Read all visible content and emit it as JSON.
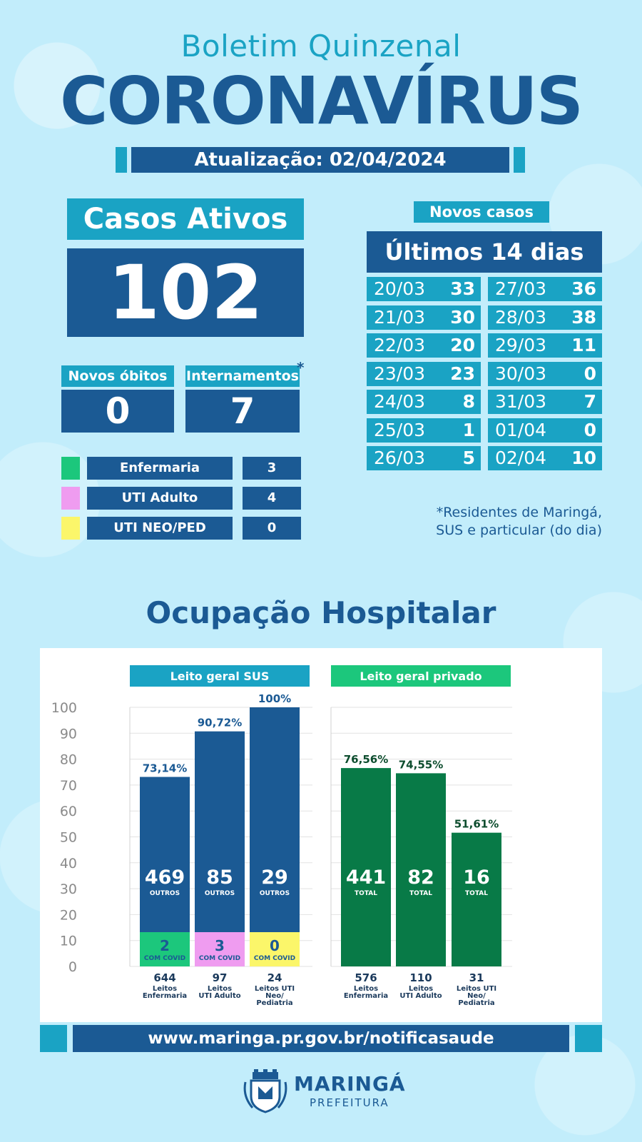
{
  "header": {
    "subtitle": "Boletim Quinzenal",
    "title": "CORONAVÍRUS",
    "update": "Atualização: 02/04/2024"
  },
  "active_cases": {
    "label": "Casos Ativos",
    "value": "102"
  },
  "deaths": {
    "label": "Novos óbitos",
    "value": "0"
  },
  "hospitalizations": {
    "label": "Internamentos",
    "asterisk": "*",
    "value": "7"
  },
  "breakdown": [
    {
      "label": "Enfermaria",
      "value": "3",
      "color": "#1cc77c"
    },
    {
      "label": "UTI Adulto",
      "value": "4",
      "color": "#ef9cf0"
    },
    {
      "label": "UTI NEO/PED",
      "value": "0",
      "color": "#fbf66a"
    }
  ],
  "new_cases": {
    "label": "Novos casos",
    "title": "Últimos 14 dias",
    "left": [
      {
        "date": "20/03",
        "value": "33"
      },
      {
        "date": "21/03",
        "value": "30"
      },
      {
        "date": "22/03",
        "value": "20"
      },
      {
        "date": "23/03",
        "value": "23"
      },
      {
        "date": "24/03",
        "value": "8"
      },
      {
        "date": "25/03",
        "value": "1"
      },
      {
        "date": "26/03",
        "value": "5"
      }
    ],
    "right": [
      {
        "date": "27/03",
        "value": "36"
      },
      {
        "date": "28/03",
        "value": "38"
      },
      {
        "date": "29/03",
        "value": "11"
      },
      {
        "date": "30/03",
        "value": "0"
      },
      {
        "date": "31/03",
        "value": "7"
      },
      {
        "date": "01/04",
        "value": "0"
      },
      {
        "date": "02/04",
        "value": "10"
      }
    ]
  },
  "footnote": [
    "*Residentes de Maringá,",
    "SUS e particular (do dia)"
  ],
  "occupancy_title": "Ocupação Hospitalar",
  "chart_data": [
    {
      "type": "bar",
      "title": "Leito geral SUS",
      "ylim": [
        0,
        100
      ],
      "yticks": [
        0,
        10,
        20,
        30,
        40,
        50,
        60,
        70,
        80,
        90,
        100
      ],
      "color": "#1b5a94",
      "header_color": "#1aa3c4",
      "bars": [
        {
          "value": 73.14,
          "value_label": "73,14%",
          "others": "469",
          "others_label": "OUTROS",
          "covid": "2",
          "covid_label": "COM COVID",
          "covid_color": "#1cc77c",
          "beds": "644",
          "beds_label": [
            "Leitos",
            "Enfermaria"
          ]
        },
        {
          "value": 90.72,
          "value_label": "90,72%",
          "others": "85",
          "others_label": "OUTROS",
          "covid": "3",
          "covid_label": "COM COVID",
          "covid_color": "#ef9cf0",
          "beds": "97",
          "beds_label": [
            "Leitos",
            "UTI Adulto"
          ]
        },
        {
          "value": 100,
          "value_label": "100%",
          "others": "29",
          "others_label": "OUTROS",
          "covid": "0",
          "covid_label": "COM COVID",
          "covid_color": "#fbf66a",
          "beds": "24",
          "beds_label": [
            "Leitos UTI",
            "Neo/",
            "Pediatria"
          ]
        }
      ]
    },
    {
      "type": "bar",
      "title": "Leito geral privado",
      "ylim": [
        0,
        100
      ],
      "color": "#087a47",
      "header_color": "#1cc77c",
      "bars": [
        {
          "value": 76.56,
          "value_label": "76,56%",
          "others": "441",
          "others_label": "TOTAL",
          "beds": "576",
          "beds_label": [
            "Leitos",
            "Enfermaria"
          ]
        },
        {
          "value": 74.55,
          "value_label": "74,55%",
          "others": "82",
          "others_label": "TOTAL",
          "beds": "110",
          "beds_label": [
            "Leitos",
            "UTI Adulto"
          ]
        },
        {
          "value": 51.61,
          "value_label": "51,61%",
          "others": "16",
          "others_label": "TOTAL",
          "beds": "31",
          "beds_label": [
            "Leitos UTI",
            "Neo/",
            "Pediatria"
          ]
        }
      ]
    }
  ],
  "url": "www.maringa.pr.gov.br/notificasaude",
  "logo": {
    "name": "MARINGÁ",
    "sub": "PREFEITURA"
  }
}
